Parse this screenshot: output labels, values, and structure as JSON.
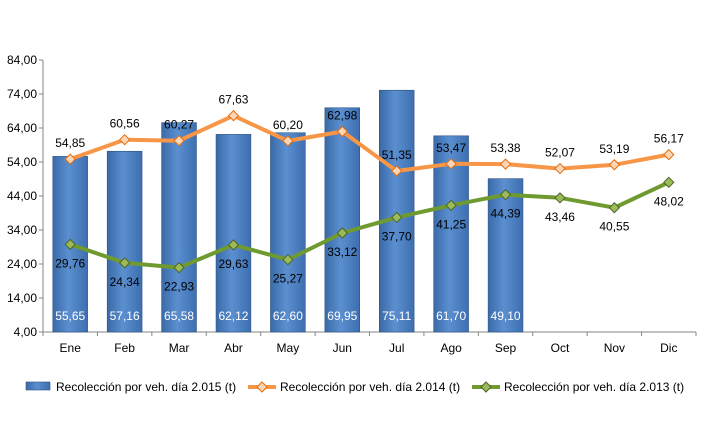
{
  "chart_data": {
    "type": "bar",
    "categories": [
      "Ene",
      "Feb",
      "Mar",
      "Abr",
      "May",
      "Jun",
      "Jul",
      "Ago",
      "Sep",
      "Oct",
      "Nov",
      "Dic"
    ],
    "ylim": [
      4,
      84
    ],
    "yticks": [
      "4,00",
      "14,00",
      "24,00",
      "34,00",
      "44,00",
      "54,00",
      "64,00",
      "74,00",
      "84,00"
    ],
    "grid": false,
    "legend_position": "bottom",
    "series": [
      {
        "name": "Recolección por veh. día 2.015 (t)",
        "kind": "bar",
        "color": "#4a7ebb",
        "values": [
          55.65,
          57.16,
          65.58,
          62.12,
          62.6,
          69.95,
          75.11,
          61.7,
          49.1,
          null,
          null,
          null
        ],
        "labels": [
          "55,65",
          "57,16",
          "65,58",
          "62,12",
          "62,60",
          "69,95",
          "75,11",
          "61,70",
          "49,10",
          null,
          null,
          null
        ]
      },
      {
        "name": "Recolección por veh. día 2.014 (t)",
        "kind": "line",
        "color": "#f79646",
        "values": [
          54.85,
          60.56,
          60.27,
          67.63,
          60.2,
          62.98,
          51.35,
          53.47,
          53.38,
          52.07,
          53.19,
          56.17
        ],
        "labels": [
          "54,85",
          "60,56",
          "60,27",
          "67,63",
          "60,20",
          "62,98",
          "51,35",
          "53,47",
          "53,38",
          "52,07",
          "53,19",
          "56,17"
        ]
      },
      {
        "name": "Recolección por veh. día 2.013 (t)",
        "kind": "line",
        "color": "#6e9a30",
        "values": [
          29.76,
          24.34,
          22.93,
          29.63,
          25.27,
          33.12,
          37.7,
          41.25,
          44.39,
          43.46,
          40.55,
          48.02
        ],
        "labels": [
          "29,76",
          "24,34",
          "22,93",
          "29,63",
          "25,27",
          "33,12",
          "37,70",
          "41,25",
          "44,39",
          "43,46",
          "40,55",
          "48,02"
        ]
      }
    ]
  }
}
